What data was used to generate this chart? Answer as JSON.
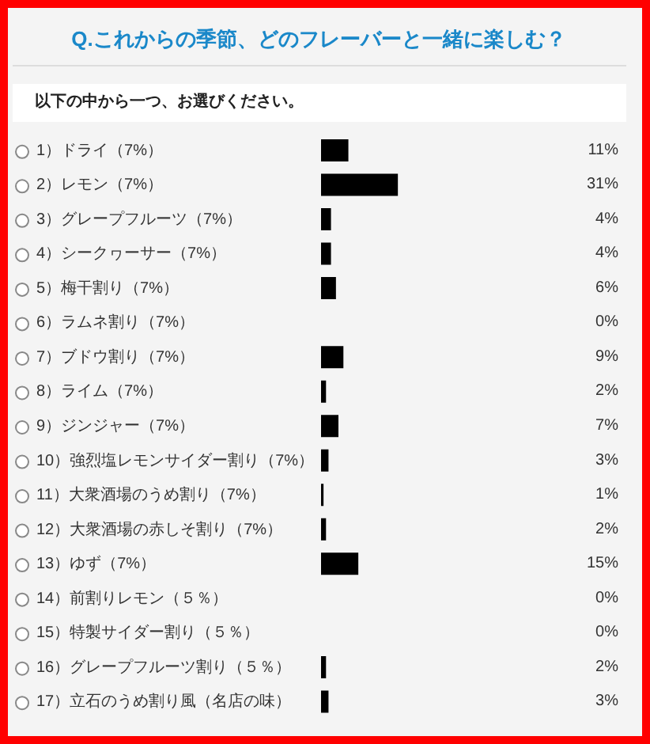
{
  "chart_data": {
    "type": "bar",
    "orientation": "horizontal",
    "title": "Q.これからの季節、どのフレーバーと一緒に楽しむ？",
    "subtitle": "以下の中から一つ、お選びください。",
    "categories": [
      "1）ドライ（7%）",
      "2）レモン（7%）",
      "3）グレープフルーツ（7%）",
      "4）シークヮーサー（7%）",
      "5）梅干割り（7%）",
      "6）ラムネ割り（7%）",
      "7）ブドウ割り（7%）",
      "8）ライム（7%）",
      "9）ジンジャー（7%）",
      "10）強烈塩レモンサイダー割り（7%）",
      "11）大衆酒場のうめ割り（7%）",
      "12）大衆酒場の赤しそ割り（7%）",
      "13）ゆず（7%）",
      "14）前割りレモン（５％）",
      "15）特製サイダー割り（５％）",
      "16）グレープフルーツ割り（５％）",
      "17）立石のうめ割り風（名店の味）"
    ],
    "values": [
      11,
      31,
      4,
      4,
      6,
      0,
      9,
      2,
      7,
      3,
      1,
      2,
      15,
      0,
      0,
      2,
      3
    ],
    "value_labels": [
      "11%",
      "31%",
      "4%",
      "4%",
      "6%",
      "0%",
      "9%",
      "2%",
      "7%",
      "3%",
      "1%",
      "2%",
      "15%",
      "0%",
      "0%",
      "2%",
      "3%"
    ],
    "color": "#000000"
  }
}
